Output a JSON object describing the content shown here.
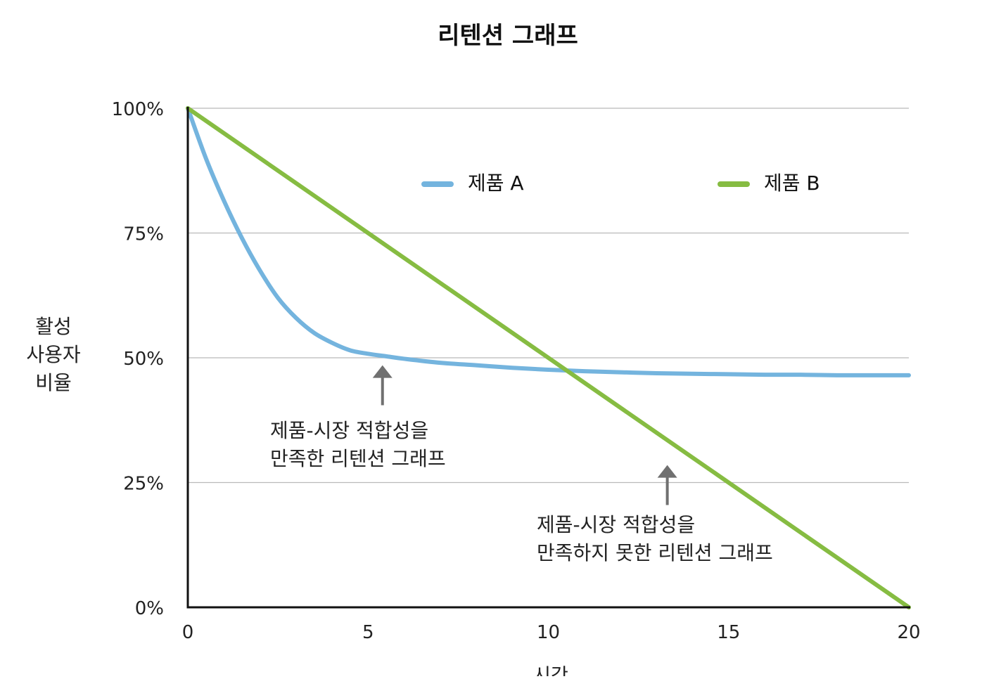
{
  "chart_data": {
    "type": "line",
    "title": "리텐션 그래프",
    "xlabel": "시간",
    "ylabel_lines": [
      "활성",
      "사용자",
      "비율"
    ],
    "xlim": [
      0,
      20
    ],
    "ylim": [
      0,
      100
    ],
    "x_ticks": [
      0,
      5,
      10,
      15,
      20
    ],
    "y_ticks": [
      {
        "value": 0,
        "label": "0%"
      },
      {
        "value": 25,
        "label": "25%"
      },
      {
        "value": 50,
        "label": "50%"
      },
      {
        "value": 75,
        "label": "75%"
      },
      {
        "value": 100,
        "label": "100%"
      }
    ],
    "grid": "horizontal",
    "legend_position": "top-right",
    "series": [
      {
        "name": "제품 A",
        "color": "#74b4de",
        "x": [
          0,
          0.5,
          1,
          1.5,
          2,
          2.5,
          3,
          3.5,
          4,
          4.5,
          5,
          5.5,
          6,
          7,
          8,
          9,
          10,
          11,
          12,
          13,
          14,
          15,
          16,
          17,
          18,
          19,
          20
        ],
        "y": [
          100,
          90,
          81.5,
          74,
          67.5,
          62,
          58,
          55,
          53,
          51.5,
          50.8,
          50.3,
          49.8,
          49,
          48.5,
          48,
          47.6,
          47.3,
          47.1,
          46.9,
          46.8,
          46.7,
          46.6,
          46.6,
          46.5,
          46.5,
          46.5
        ]
      },
      {
        "name": "제품 B",
        "color": "#86bc42",
        "x": [
          0,
          20
        ],
        "y": [
          100,
          0
        ]
      }
    ],
    "annotations": [
      {
        "lines": [
          "제품-시장 적합성을",
          "만족한 리텐션 그래프"
        ],
        "arrow_x": 5.4,
        "arrow_y_from": 40.5,
        "arrow_y_to": 48.5
      },
      {
        "lines": [
          "제품-시장 적합성을",
          "만족하지 못한 리텐션 그래프"
        ],
        "arrow_x": 13.3,
        "arrow_y_from": 20.5,
        "arrow_y_to": 28.5
      }
    ]
  }
}
